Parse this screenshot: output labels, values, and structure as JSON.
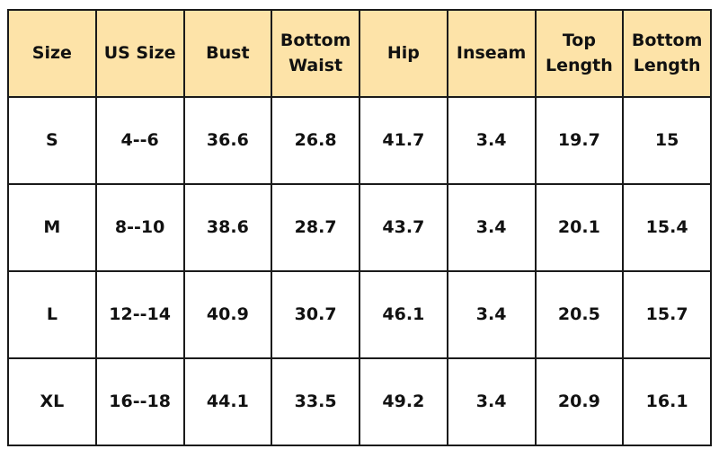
{
  "table": {
    "header": [
      "Size",
      "US Size",
      "Bust",
      "Bottom Waist",
      "Hip",
      "Inseam",
      "Top Length",
      "Bottom Length"
    ],
    "rows": [
      [
        "S",
        "4--6",
        "36.6",
        "26.8",
        "41.7",
        "3.4",
        "19.7",
        "15"
      ],
      [
        "M",
        "8--10",
        "38.6",
        "28.7",
        "43.7",
        "3.4",
        "20.1",
        "15.4"
      ],
      [
        "L",
        "12--14",
        "40.9",
        "30.7",
        "46.1",
        "3.4",
        "20.5",
        "15.7"
      ],
      [
        "XL",
        "16--18",
        "44.1",
        "33.5",
        "49.2",
        "3.4",
        "20.9",
        "16.1"
      ]
    ]
  }
}
